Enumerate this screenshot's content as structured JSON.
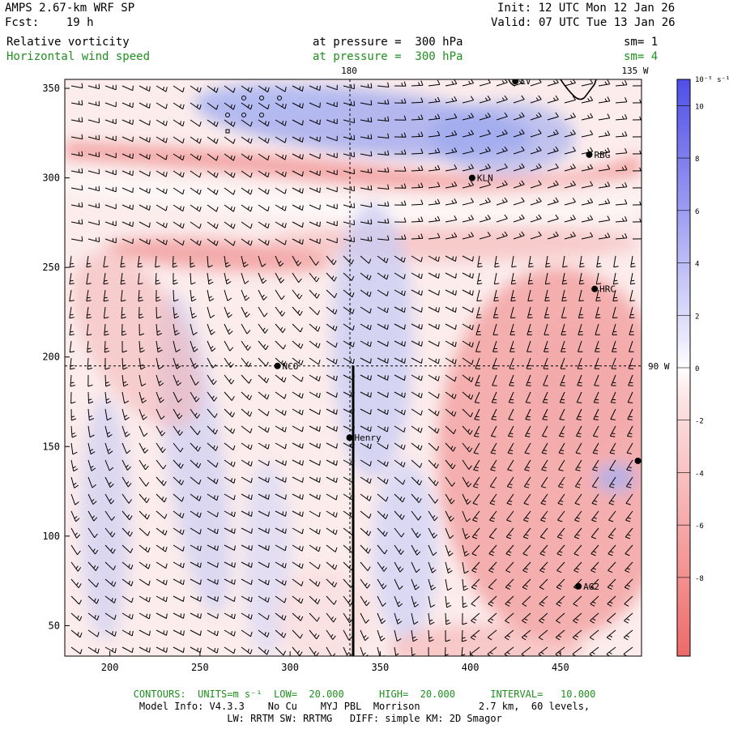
{
  "header": {
    "model_title": "AMPS 2.67-km WRF SP",
    "init": "Init: 12 UTC Mon 12 Jan 26",
    "forecast": "Fcst:    19 h",
    "valid": "Valid: 07 UTC Tue 13 Jan 26",
    "field1": {
      "name": "Relative vorticity",
      "level": "at pressure =  300 hPa",
      "smoothing": "sm= 1"
    },
    "field2": {
      "name": "Horizontal wind speed",
      "level": "at pressure =  300 hPa",
      "smoothing": "sm= 4"
    }
  },
  "map": {
    "meridian_labels": {
      "top_180": "180",
      "top_135w": "135 W",
      "right_90w": "90 W"
    },
    "x_axis": {
      "range": [
        175,
        495
      ],
      "ticks": [
        "200",
        "250",
        "300",
        "350",
        "400",
        "450"
      ]
    },
    "y_axis": {
      "range": [
        33,
        355
      ],
      "ticks": [
        "50",
        "100",
        "150",
        "200",
        "250",
        "300",
        "350"
      ]
    },
    "stations": [
      {
        "name": "LV",
        "x": 425,
        "y": 354
      },
      {
        "name": "RBG",
        "x": 466,
        "y": 313
      },
      {
        "name": "KLN",
        "x": 401,
        "y": 300
      },
      {
        "name": "HRC",
        "x": 469,
        "y": 238
      },
      {
        "name": "NCO",
        "x": 293,
        "y": 195
      },
      {
        "name": "Henry",
        "x": 333,
        "y": 155
      },
      {
        "name": "",
        "x": 493,
        "y": 142
      },
      {
        "name": "AG2",
        "x": 460,
        "y": 72
      }
    ],
    "cross_section": {
      "x": 335,
      "y_from": 33,
      "y_to": 195
    }
  },
  "colorbar": {
    "unit_label": "10⁻⁵ s⁻¹",
    "ticks": [
      "10",
      "8",
      "6",
      "4",
      "2",
      "0",
      "-2",
      "-4",
      "-6",
      "-8"
    ],
    "colors": {
      "positive": "#5a5ae6",
      "zero": "#ffffff",
      "negative": "#ee6a6a"
    }
  },
  "footer": {
    "contours": "CONTOURS:  UNITS=m s⁻¹  LOW=  20.000      HIGH=  20.000      INTERVAL=   10.000",
    "model_info": "Model Info: V4.3.3    No Cu    MYJ PBL  Morrison          2.7 km,  60 levels,",
    "physics": "LW: RRTM SW: RRTMG   DIFF: simple KM: 2D Smagor"
  }
}
